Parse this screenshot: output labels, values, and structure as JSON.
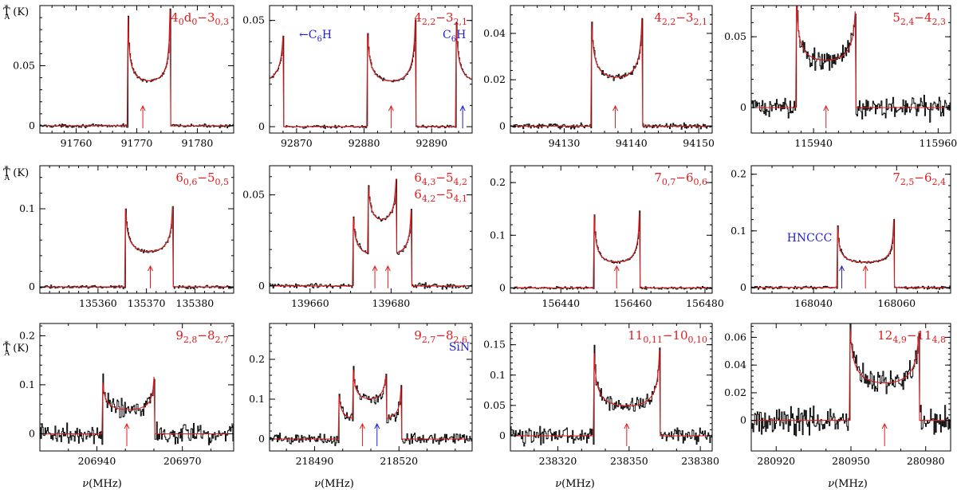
{
  "figure": {
    "ylabel_main": "T",
    "ylabel_sup": "*",
    "ylabel_sub": "A",
    "ylabel_unit": " (K)",
    "xlabel_main": "ν",
    "xlabel_unit": "(MHz)"
  },
  "colors": {
    "model": "#e41a1c",
    "data": "#111111",
    "blend": "#1f1fd6",
    "frame": "#000000"
  },
  "chart_data": [
    {
      "type": "line",
      "title": "4 0,d -3 0,3",
      "label": {
        "b": "4",
        "s1": "0",
        "m": "d",
        "s2": "0",
        "dash": "−",
        "b2": "3",
        "s3": "0,3"
      },
      "xlim": [
        91754,
        91786
      ],
      "ylim": [
        -0.006,
        0.1
      ],
      "xticks": [
        91760,
        91770,
        91780
      ],
      "yticks": [
        0,
        0.05
      ],
      "ytick_labels": [
        "0",
        "0.05"
      ],
      "lines": [
        {
          "c": 91772,
          "hw": 3.5,
          "a": 0.038,
          "b": 0.022,
          "r": 0.22
        }
      ],
      "markers": [
        {
          "x": 91771,
          "color": "red"
        }
      ],
      "annotations": [],
      "noise": 0.0008
    },
    {
      "type": "line",
      "title": "4 2,2 -3 2,1 and C6H",
      "label": {
        "b": "4",
        "s1": "2,2",
        "dash": "−",
        "b2": "3",
        "s3": "2,1"
      },
      "xlim": [
        92866,
        92896
      ],
      "ylim": [
        -0.003,
        0.057
      ],
      "xticks": [
        92870,
        92880,
        92890
      ],
      "yticks": [
        0,
        0.05
      ],
      "ytick_labels": [
        "0",
        "0.05"
      ],
      "lines": [
        {
          "c": 92884,
          "hw": 3.6,
          "a": 0.022,
          "b": 0.014,
          "r": 0.28
        },
        {
          "c": 92897.2,
          "hw": 3.6,
          "a": 0.022,
          "b": 0.014,
          "r": 0.28
        },
        {
          "c": 92864.5,
          "hw": 3.6,
          "a": 0.022,
          "b": 0.014,
          "r": 0.28
        }
      ],
      "markers": [
        {
          "x": 92884,
          "color": "red"
        },
        {
          "x": 92894.6,
          "color": "blue"
        }
      ],
      "annotations": [
        {
          "id": "c6h-left",
          "main": "C",
          "sub": "6",
          "tail": "H",
          "prefix": "←",
          "color": "blue"
        },
        {
          "id": "c6h-right",
          "main": "C",
          "sub": "6",
          "tail": "H",
          "prefix": "",
          "color": "blue"
        }
      ],
      "noise": 0.0004
    },
    {
      "type": "line",
      "title": "4 2,2 -3 2,1",
      "label": {
        "b": "4",
        "s1": "2,2",
        "dash": "−",
        "b2": "3",
        "s3": "2,1"
      },
      "xlim": [
        94122,
        94152
      ],
      "ylim": [
        -0.003,
        0.052
      ],
      "xticks": [
        94130,
        94140,
        94150
      ],
      "yticks": [
        0,
        0.02,
        0.04
      ],
      "ytick_labels": [
        "0",
        "0.02",
        "0.04"
      ],
      "lines": [
        {
          "c": 94137.8,
          "hw": 3.8,
          "a": 0.0215,
          "b": 0.013,
          "r": 0.27
        }
      ],
      "markers": [
        {
          "x": 94137.6,
          "color": "red"
        }
      ],
      "annotations": [],
      "noise": 0.0007
    },
    {
      "type": "line",
      "title": "5 2,4 -4 2,3",
      "label": {
        "b": "5",
        "s1": "2,4",
        "dash": "−",
        "b2": "4",
        "s3": "2,3"
      },
      "xlim": [
        115930,
        115962
      ],
      "ylim": [
        -0.018,
        0.072
      ],
      "xticks": [
        115940,
        115960
      ],
      "yticks": [
        0,
        0.05
      ],
      "ytick_labels": [
        "0",
        "0.05"
      ],
      "lines": [
        {
          "c": 115942,
          "hw": 4.8,
          "a": 0.034,
          "b": 0.02,
          "r": 0.26
        }
      ],
      "markers": [
        {
          "x": 115942,
          "color": "red"
        }
      ],
      "annotations": [],
      "noise": 0.0045
    },
    {
      "type": "line",
      "title": "6 0,6 -5 0,5",
      "label": {
        "b": "6",
        "s1": "0,6",
        "dash": "−",
        "b2": "5",
        "s3": "0,5"
      },
      "xlim": [
        135348,
        135388
      ],
      "ylim": [
        -0.008,
        0.155
      ],
      "xticks": [
        135360,
        135370,
        135380
      ],
      "yticks": [
        0,
        0.1
      ],
      "ytick_labels": [
        "0",
        "0.1"
      ],
      "lines": [
        {
          "c": 135370.5,
          "hw": 5.0,
          "a": 0.046,
          "b": 0.03,
          "r": 0.22
        }
      ],
      "markers": [
        {
          "x": 135370.8,
          "color": "red"
        }
      ],
      "annotations": [],
      "noise": 0.0012
    },
    {
      "type": "line",
      "title": "6 4,3 -5 4,2 / 6 4,2 -5 4,1",
      "label": {
        "b": "6",
        "s1": "4,3",
        "dash": "−",
        "b2": "5",
        "s3": "4,2"
      },
      "label2": {
        "b": "6",
        "s1": "4,2",
        "dash": "−",
        "b2": "5",
        "s3": "4,1"
      },
      "xlim": [
        139650,
        139700
      ],
      "ylim": [
        -0.004,
        0.066
      ],
      "xticks": [
        139660,
        139680
      ],
      "yticks": [
        0,
        0.05
      ],
      "ytick_labels": [
        "0",
        "0.05"
      ],
      "lines": [
        {
          "c": 139675.9,
          "hw": 5.4,
          "a": 0.018,
          "b": 0.012,
          "r": 0.26
        },
        {
          "c": 139679.6,
          "hw": 5.4,
          "a": 0.018,
          "b": 0.012,
          "r": 0.26
        }
      ],
      "markers": [
        {
          "x": 139676,
          "color": "red"
        },
        {
          "x": 139679.2,
          "color": "red"
        }
      ],
      "annotations": [],
      "noise": 0.0009
    },
    {
      "type": "line",
      "title": "7 0,7 -6 0,6",
      "label": {
        "b": "7",
        "s1": "0,7",
        "dash": "−",
        "b2": "6",
        "s3": "0,6"
      },
      "xlim": [
        156426,
        156482
      ],
      "ylim": [
        -0.01,
        0.232
      ],
      "xticks": [
        156440,
        156460,
        156480
      ],
      "yticks": [
        0,
        0.1,
        0.2
      ],
      "ytick_labels": [
        "0",
        "0.1",
        "0.2"
      ],
      "lines": [
        {
          "c": 156455.5,
          "hw": 6.4,
          "a": 0.05,
          "b": 0.04,
          "r": 0.2
        }
      ],
      "markers": [
        {
          "x": 156455.5,
          "color": "red"
        }
      ],
      "annotations": [],
      "noise": 0.0015
    },
    {
      "type": "line",
      "title": "7 2,5 -6 2,4 with HNCCC",
      "label": {
        "b": "7",
        "s1": "2,5",
        "dash": "−",
        "b2": "6",
        "s3": "2,4"
      },
      "xlim": [
        168025,
        168073
      ],
      "ylim": [
        -0.01,
        0.215
      ],
      "xticks": [
        168040,
        168060
      ],
      "yticks": [
        0,
        0.1,
        0.2
      ],
      "ytick_labels": [
        "0",
        "0.1",
        "0.2"
      ],
      "lines": [
        {
          "c": 168052.5,
          "hw": 6.8,
          "a": 0.045,
          "b": 0.025,
          "r": 0.22
        }
      ],
      "markers": [
        {
          "x": 168046.8,
          "color": "blue"
        },
        {
          "x": 168052.5,
          "color": "red"
        }
      ],
      "annotations": [
        {
          "id": "hnccc",
          "main": "HNCCC",
          "sub": "",
          "tail": "",
          "prefix": "",
          "color": "blue"
        }
      ],
      "noise": 0.0018
    },
    {
      "type": "line",
      "title": "9 2,8 -8 2,7",
      "label": {
        "b": "9",
        "s1": "2,8",
        "dash": "−",
        "b2": "8",
        "s3": "2,7"
      },
      "xlim": [
        206920,
        206988
      ],
      "ylim": [
        -0.035,
        0.225
      ],
      "xticks": [
        206940,
        206970
      ],
      "yticks": [
        0,
        0.1,
        0.2
      ],
      "ytick_labels": [
        "0",
        "0.1",
        "0.2"
      ],
      "lines": [
        {
          "c": 206951,
          "hw": 9.2,
          "a": 0.05,
          "b": 0.03,
          "r": 0.22
        }
      ],
      "markers": [
        {
          "x": 206950.5,
          "color": "red"
        }
      ],
      "annotations": [],
      "noise": 0.012
    },
    {
      "type": "line",
      "title": "9 2,7 -8 2,6 with SiN",
      "label": {
        "b": "9",
        "s1": "2,7",
        "dash": "−",
        "b2": "8",
        "s3": "2,6"
      },
      "xlim": [
        218474,
        218546
      ],
      "ylim": [
        -0.03,
        0.29
      ],
      "xticks": [
        218490,
        218520
      ],
      "yticks": [
        0,
        0.1,
        0.2
      ],
      "ytick_labels": [
        "0",
        "0.1",
        "0.2"
      ],
      "lines": [
        {
          "c": 218507,
          "hw": 8.6,
          "a": 0.05,
          "b": 0.035,
          "r": 0.24
        },
        {
          "c": 218512.2,
          "hw": 8.6,
          "a": 0.05,
          "b": 0.035,
          "r": 0.24
        }
      ],
      "markers": [
        {
          "x": 218507,
          "color": "red"
        },
        {
          "x": 218512.2,
          "color": "blue"
        }
      ],
      "annotations": [
        {
          "id": "sin",
          "main": "SiN",
          "sub": "",
          "tail": "",
          "prefix": "",
          "color": "blue"
        }
      ],
      "noise": 0.009
    },
    {
      "type": "line",
      "title": "11 0,11 -10 0,10",
      "label": {
        "b": "11",
        "s1": "0,11",
        "dash": "−",
        "b2": "10",
        "s3": "0,10"
      },
      "xlim": [
        238300,
        238385
      ],
      "ylim": [
        -0.025,
        0.185
      ],
      "xticks": [
        238320,
        238350,
        238380
      ],
      "yticks": [
        0,
        0.05,
        0.1,
        0.15
      ],
      "ytick_labels": [
        "0",
        "0.05",
        "0.1",
        "0.15"
      ],
      "lines": [
        {
          "c": 238349,
          "hw": 14,
          "a": 0.05,
          "b": 0.04,
          "r": 0.22
        }
      ],
      "markers": [
        {
          "x": 238349,
          "color": "red"
        }
      ],
      "annotations": [],
      "noise": 0.008
    },
    {
      "type": "line",
      "title": "12 4,9 -11 4,8",
      "label": {
        "b": "12",
        "s1": "4,9",
        "dash": "−",
        "b2": "11",
        "s3": "4,8"
      },
      "xlim": [
        280910,
        280990
      ],
      "ylim": [
        -0.022,
        0.07
      ],
      "xticks": [
        280920,
        280950,
        280980
      ],
      "yticks": [
        0,
        0.02,
        0.04,
        0.06
      ],
      "ytick_labels": [
        "0",
        "0.02",
        "0.04",
        "0.06"
      ],
      "lines": [
        {
          "c": 280963.5,
          "hw": 14,
          "a": 0.028,
          "b": 0.022,
          "r": 0.3
        }
      ],
      "markers": [
        {
          "x": 280963.5,
          "color": "red"
        }
      ],
      "annotations": [],
      "noise": 0.006
    }
  ]
}
